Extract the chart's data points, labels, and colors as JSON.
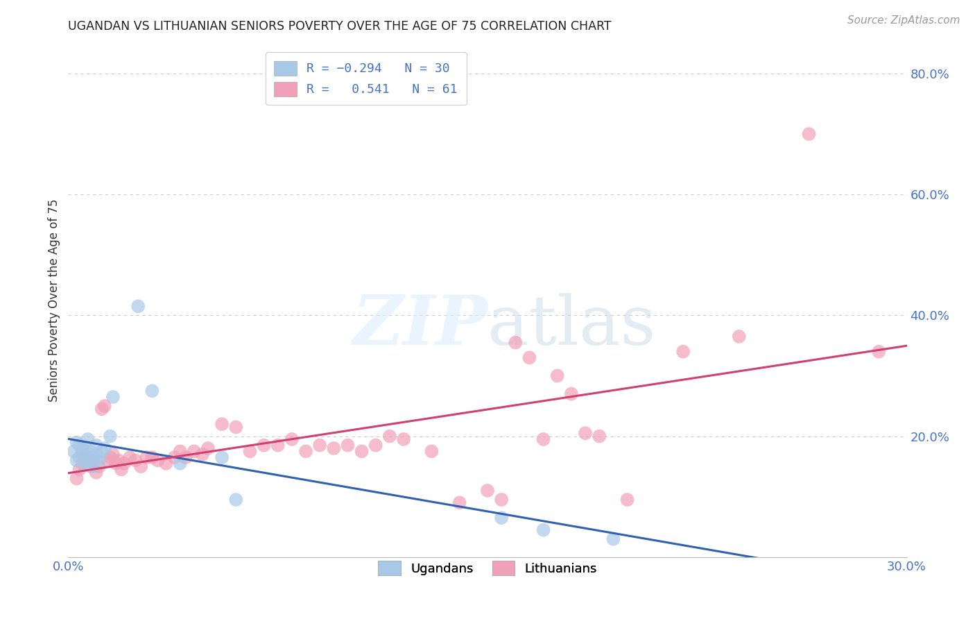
{
  "title": "UGANDAN VS LITHUANIAN SENIORS POVERTY OVER THE AGE OF 75 CORRELATION CHART",
  "source": "Source: ZipAtlas.com",
  "ylabel": "Seniors Poverty Over the Age of 75",
  "xlim": [
    0.0,
    0.3
  ],
  "ylim": [
    0.0,
    0.85
  ],
  "background_color": "#ffffff",
  "grid_color": "#cccccc",
  "ugandan_color": "#a8c8e8",
  "lithuanian_color": "#f0a0b8",
  "ugandan_line_color": "#3060b0",
  "lithuanian_line_color": "#d04070",
  "ugandan_R": -0.294,
  "ugandan_N": 30,
  "lithuanian_R": 0.541,
  "lithuanian_N": 61,
  "ugandans_x": [
    0.002,
    0.003,
    0.003,
    0.004,
    0.004,
    0.005,
    0.005,
    0.006,
    0.006,
    0.007,
    0.007,
    0.008,
    0.008,
    0.009,
    0.009,
    0.01,
    0.01,
    0.011,
    0.012,
    0.013,
    0.015,
    0.016,
    0.025,
    0.03,
    0.04,
    0.055,
    0.06,
    0.155,
    0.17,
    0.195
  ],
  "ugandans_y": [
    0.175,
    0.16,
    0.19,
    0.165,
    0.185,
    0.17,
    0.18,
    0.155,
    0.175,
    0.16,
    0.195,
    0.165,
    0.175,
    0.15,
    0.165,
    0.17,
    0.185,
    0.16,
    0.175,
    0.18,
    0.2,
    0.265,
    0.415,
    0.275,
    0.155,
    0.165,
    0.095,
    0.065,
    0.045,
    0.03
  ],
  "lithuanians_x": [
    0.003,
    0.004,
    0.005,
    0.006,
    0.007,
    0.008,
    0.009,
    0.01,
    0.011,
    0.012,
    0.013,
    0.014,
    0.015,
    0.016,
    0.017,
    0.018,
    0.019,
    0.02,
    0.022,
    0.024,
    0.026,
    0.028,
    0.03,
    0.032,
    0.035,
    0.038,
    0.04,
    0.042,
    0.045,
    0.048,
    0.05,
    0.055,
    0.06,
    0.065,
    0.07,
    0.075,
    0.08,
    0.085,
    0.09,
    0.095,
    0.1,
    0.105,
    0.11,
    0.115,
    0.12,
    0.13,
    0.14,
    0.15,
    0.155,
    0.16,
    0.165,
    0.17,
    0.175,
    0.18,
    0.185,
    0.19,
    0.2,
    0.22,
    0.24,
    0.265,
    0.29
  ],
  "lithuanians_y": [
    0.13,
    0.145,
    0.155,
    0.165,
    0.16,
    0.15,
    0.155,
    0.14,
    0.15,
    0.245,
    0.25,
    0.16,
    0.165,
    0.17,
    0.155,
    0.16,
    0.145,
    0.155,
    0.165,
    0.16,
    0.15,
    0.165,
    0.165,
    0.16,
    0.155,
    0.165,
    0.175,
    0.165,
    0.175,
    0.17,
    0.18,
    0.22,
    0.215,
    0.175,
    0.185,
    0.185,
    0.195,
    0.175,
    0.185,
    0.18,
    0.185,
    0.175,
    0.185,
    0.2,
    0.195,
    0.175,
    0.09,
    0.11,
    0.095,
    0.355,
    0.33,
    0.195,
    0.3,
    0.27,
    0.205,
    0.2,
    0.095,
    0.34,
    0.365,
    0.7,
    0.34
  ]
}
